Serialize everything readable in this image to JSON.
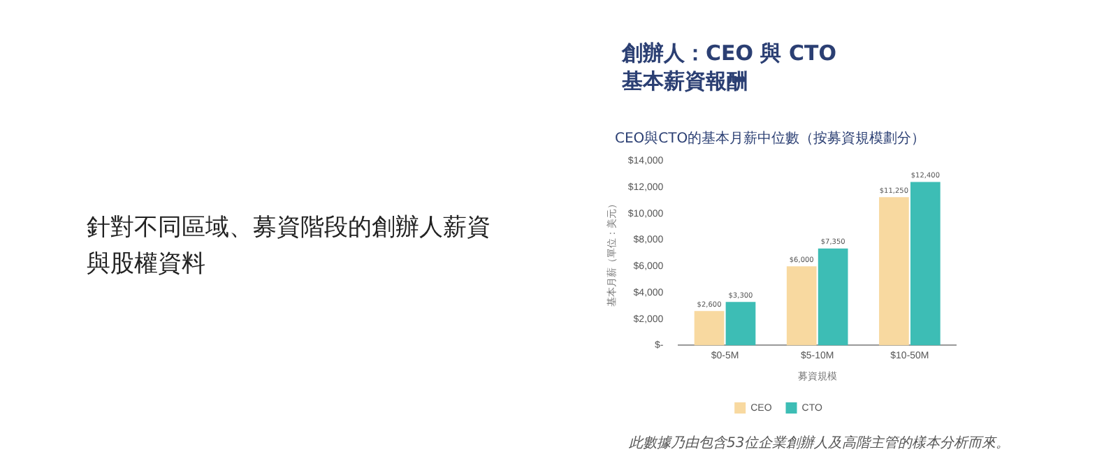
{
  "chart_data": {
    "type": "bar",
    "title": "創辦人：CEO 與 CTO 基本薪資報酬",
    "subtitle": "CEO與CTO的基本月薪中位數（按募資規模劃分）",
    "xlabel": "募資規模",
    "ylabel": "基本月薪（單位：美元）",
    "categories": [
      "$0-5M",
      "$5-10M",
      "$10-50M"
    ],
    "series": [
      {
        "name": "CEO",
        "color": "#f8d9a0",
        "values": [
          2600,
          6000,
          11250
        ],
        "value_labels": [
          "$2,600",
          "$6,000",
          "$11,250"
        ]
      },
      {
        "name": "CTO",
        "color": "#3dbdb5",
        "values": [
          3300,
          7350,
          12400
        ],
        "value_labels": [
          "$3,300",
          "$7,350",
          "$12,400"
        ]
      }
    ],
    "ylim": [
      0,
      14000
    ],
    "yticks": [
      {
        "value": 0,
        "label": "$-"
      },
      {
        "value": 2000,
        "label": "$2,000"
      },
      {
        "value": 4000,
        "label": "$4,000"
      },
      {
        "value": 6000,
        "label": "$6,000"
      },
      {
        "value": 8000,
        "label": "$8,000"
      },
      {
        "value": 10000,
        "label": "$10,000"
      },
      {
        "value": 12000,
        "label": "$12,000"
      },
      {
        "value": 14000,
        "label": "$14,000"
      }
    ],
    "grid": false,
    "legend": "bottom",
    "annotations": [
      "針對不同區域、募資階段的創辦人薪資與股權資料",
      "此數據乃由包含53位企業創辦人及高階主管的樣本分析而來。"
    ]
  }
}
